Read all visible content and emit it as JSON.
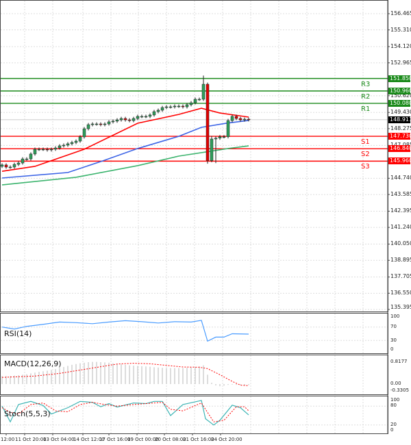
{
  "chart_data": {
    "type": "candlestick",
    "price_axis": {
      "ticks": [
        156.465,
        155.31,
        154.12,
        152.965,
        150.62,
        149.43,
        148.275,
        147.085,
        144.74,
        143.585,
        142.395,
        141.24,
        140.05,
        138.895,
        137.705,
        136.55,
        135.395
      ],
      "range": [
        135.395,
        156.465
      ]
    },
    "current_price": {
      "value": 148.911,
      "label": "148.911",
      "color": "#000000"
    },
    "levels": [
      {
        "name": "R3",
        "value": 151.85,
        "label": "151.850",
        "color": "#1a8a1a"
      },
      {
        "name": "R2",
        "value": 150.96,
        "label": "150.960",
        "color": "#1a8a1a"
      },
      {
        "name": "R1",
        "value": 150.08,
        "label": "150.080",
        "color": "#1a8a1a"
      },
      {
        "name": "S1",
        "value": 147.73,
        "label": "147.730",
        "color": "#ff0000"
      },
      {
        "name": "S2",
        "value": 146.84,
        "label": "146.840",
        "color": "#ff0000"
      },
      {
        "name": "S3",
        "value": 145.96,
        "label": "145.960",
        "color": "#ff0000"
      }
    ],
    "time_labels": [
      "12:00",
      "11 Oct 20:00",
      "13 Oct 04:00",
      "14 Oct 12:00",
      "17 Oct 16:00",
      "19 Oct 00:00",
      "20 Oct 08:00",
      "21 Oct 16:00",
      "24 Oct 20:00"
    ],
    "closes": [
      145.69,
      145.54,
      145.54,
      145.73,
      145.83,
      146.12,
      146.12,
      146.47,
      146.81,
      146.81,
      146.81,
      146.76,
      146.81,
      146.9,
      147.05,
      147.1,
      147.2,
      147.29,
      147.39,
      147.69,
      148.27,
      148.56,
      148.61,
      148.61,
      148.56,
      148.61,
      148.76,
      148.81,
      148.9,
      149.0,
      148.9,
      148.85,
      149.0,
      149.15,
      149.15,
      149.15,
      149.25,
      149.49,
      149.59,
      149.78,
      149.83,
      149.83,
      149.88,
      149.88,
      149.83,
      149.98,
      150.12,
      150.37,
      150.37,
      151.44,
      146.0,
      147.54,
      147.6,
      147.7,
      147.7,
      148.85,
      149.15,
      149.0,
      148.9,
      148.95,
      148.91
    ],
    "moving_averages": [
      {
        "color": "#ff0000",
        "points": [
          [
            0,
            145.24
          ],
          [
            8,
            145.59
          ],
          [
            20,
            146.81
          ],
          [
            33,
            148.66
          ],
          [
            43,
            149.29
          ],
          [
            48.5,
            149.73
          ],
          [
            53,
            149.39
          ],
          [
            60,
            149.1
          ]
        ]
      },
      {
        "color": "#3c64e6",
        "points": [
          [
            0,
            144.76
          ],
          [
            16,
            145.15
          ],
          [
            24.5,
            145.98
          ],
          [
            33,
            146.86
          ],
          [
            43,
            147.73
          ],
          [
            48.5,
            148.37
          ],
          [
            54.5,
            148.66
          ],
          [
            60,
            148.86
          ]
        ]
      },
      {
        "color": "#3cb46e",
        "points": [
          [
            0,
            144.27
          ],
          [
            18,
            144.81
          ],
          [
            33,
            145.64
          ],
          [
            43,
            146.32
          ],
          [
            49.5,
            146.61
          ],
          [
            55,
            146.86
          ],
          [
            60,
            147.05
          ]
        ]
      }
    ],
    "rsi": {
      "label": "RSI(14)",
      "ticks": [
        "100",
        "70",
        "30",
        "0"
      ],
      "color": "#4a9cff",
      "points": [
        [
          0,
          70
        ],
        [
          3,
          64
        ],
        [
          6,
          72
        ],
        [
          10,
          78
        ],
        [
          14,
          85
        ],
        [
          18,
          83
        ],
        [
          22,
          80
        ],
        [
          26,
          85
        ],
        [
          30,
          89
        ],
        [
          34,
          86
        ],
        [
          38,
          82
        ],
        [
          42,
          86
        ],
        [
          46,
          85
        ],
        [
          48.5,
          90
        ],
        [
          50,
          28
        ],
        [
          52,
          40
        ],
        [
          54,
          40
        ],
        [
          56,
          50
        ],
        [
          60,
          49
        ]
      ]
    },
    "macd": {
      "label": "MACD(12,26,9)",
      "ticks": [
        "0.8177",
        "0.00",
        "-0.3305"
      ],
      "histogram_color": "#c8c8c8",
      "signal_color": "#ff0000",
      "histogram": [
        0.3,
        0.3,
        0.3,
        0.32,
        0.33,
        0.35,
        0.37,
        0.4,
        0.43,
        0.46,
        0.48,
        0.5,
        0.53,
        0.56,
        0.6,
        0.64,
        0.68,
        0.72,
        0.75,
        0.78,
        0.8,
        0.82,
        0.83,
        0.83,
        0.82,
        0.81,
        0.8,
        0.78,
        0.76,
        0.74,
        0.72,
        0.7,
        0.69,
        0.68,
        0.67,
        0.66,
        0.65,
        0.63,
        0.62,
        0.61,
        0.6,
        0.6,
        0.6,
        0.6,
        0.6,
        0.61,
        0.62,
        0.64,
        0.66,
        0.7,
        0.35,
        0.05,
        -0.05,
        -0.08,
        -0.06,
        -0.03,
        -0.02,
        -0.03,
        -0.04,
        -0.05,
        -0.04
      ],
      "signal": [
        [
          0,
          0.25
        ],
        [
          8,
          0.3
        ],
        [
          14,
          0.4
        ],
        [
          20,
          0.55
        ],
        [
          24,
          0.65
        ],
        [
          28,
          0.75
        ],
        [
          32,
          0.78
        ],
        [
          36,
          0.76
        ],
        [
          40,
          0.7
        ],
        [
          44,
          0.64
        ],
        [
          48,
          0.63
        ],
        [
          50,
          0.58
        ],
        [
          53,
          0.35
        ],
        [
          56,
          0.1
        ],
        [
          58,
          -0.04
        ],
        [
          60,
          -0.06
        ]
      ]
    },
    "stoch": {
      "label": "Stoch(5,5,3)",
      "ticks": [
        "100",
        "80",
        "20",
        "0"
      ],
      "main_color": "#3cb4b4",
      "signal_color": "#ff0000",
      "main": [
        [
          0,
          80
        ],
        [
          2,
          30
        ],
        [
          4,
          85
        ],
        [
          7,
          95
        ],
        [
          10,
          82
        ],
        [
          12,
          55
        ],
        [
          16,
          75
        ],
        [
          19,
          95
        ],
        [
          22,
          92
        ],
        [
          24,
          78
        ],
        [
          26,
          88
        ],
        [
          28,
          77
        ],
        [
          32,
          90
        ],
        [
          35,
          88
        ],
        [
          37,
          95
        ],
        [
          39,
          95
        ],
        [
          41,
          50
        ],
        [
          44,
          85
        ],
        [
          48.5,
          98
        ],
        [
          49.5,
          40
        ],
        [
          51.5,
          20
        ],
        [
          53,
          35
        ],
        [
          56,
          83
        ],
        [
          58,
          75
        ],
        [
          60,
          52
        ]
      ],
      "signal": [
        [
          0,
          75
        ],
        [
          2,
          60
        ],
        [
          4,
          55
        ],
        [
          7,
          85
        ],
        [
          10,
          90
        ],
        [
          13,
          65
        ],
        [
          16,
          62
        ],
        [
          19,
          85
        ],
        [
          22,
          92
        ],
        [
          25,
          85
        ],
        [
          28,
          80
        ],
        [
          32,
          85
        ],
        [
          35,
          88
        ],
        [
          37,
          90
        ],
        [
          39,
          92
        ],
        [
          41,
          70
        ],
        [
          44,
          65
        ],
        [
          48.5,
          90
        ],
        [
          50,
          60
        ],
        [
          51.5,
          30
        ],
        [
          54,
          35
        ],
        [
          57,
          78
        ],
        [
          59,
          78
        ],
        [
          60,
          65
        ]
      ]
    }
  }
}
